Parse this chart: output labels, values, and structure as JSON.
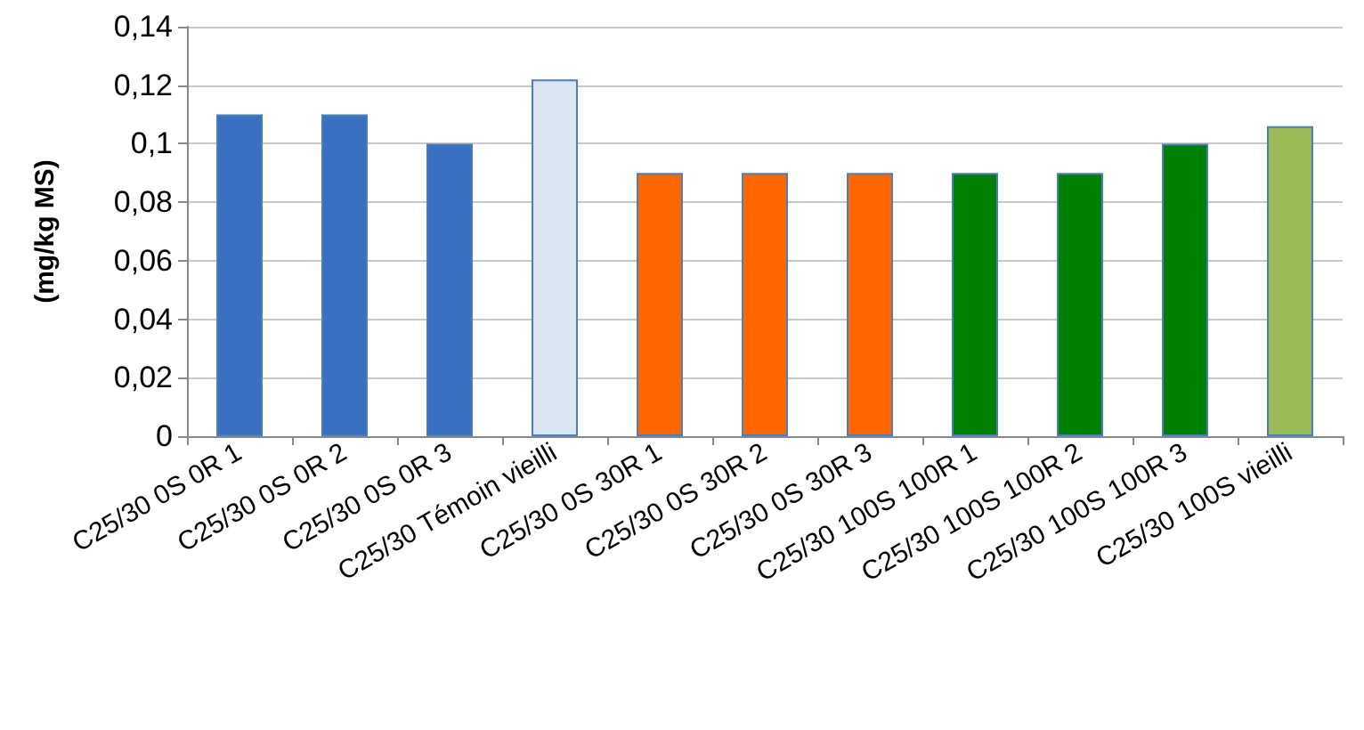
{
  "chart_data": {
    "type": "bar",
    "ylabel": "(mg/kg MS)",
    "categories": [
      "C25/30 0S 0R 1",
      "C25/30 0S 0R 2",
      "C25/30 0S 0R 3",
      "C25/30 Témoin vieilli",
      "C25/30 0S 30R 1",
      "C25/30 0S 30R 2",
      "C25/30 0S 30R 3",
      "C25/30 100S 100R 1",
      "C25/30 100S 100R 2",
      "C25/30 100S 100R 3",
      "C25/30 100S vieilli"
    ],
    "values": [
      0.11,
      0.11,
      0.1,
      0.122,
      0.09,
      0.09,
      0.09,
      0.09,
      0.09,
      0.1,
      0.106
    ],
    "colors": [
      "#3a70c0",
      "#3a70c0",
      "#3a70c0",
      "#dce6f2",
      "#ff6600",
      "#ff6600",
      "#ff6600",
      "#008000",
      "#008000",
      "#008000",
      "#9bbb59"
    ],
    "ylim": [
      0,
      0.14
    ],
    "yticks": [
      {
        "value": 0,
        "label": "0"
      },
      {
        "value": 0.02,
        "label": "0,02"
      },
      {
        "value": 0.04,
        "label": "0,04"
      },
      {
        "value": 0.06,
        "label": "0,06"
      },
      {
        "value": 0.08,
        "label": "0,08"
      },
      {
        "value": 0.1,
        "label": "0,1"
      },
      {
        "value": 0.12,
        "label": "0,12"
      },
      {
        "value": 0.14,
        "label": "0,14"
      }
    ],
    "grid": true
  }
}
